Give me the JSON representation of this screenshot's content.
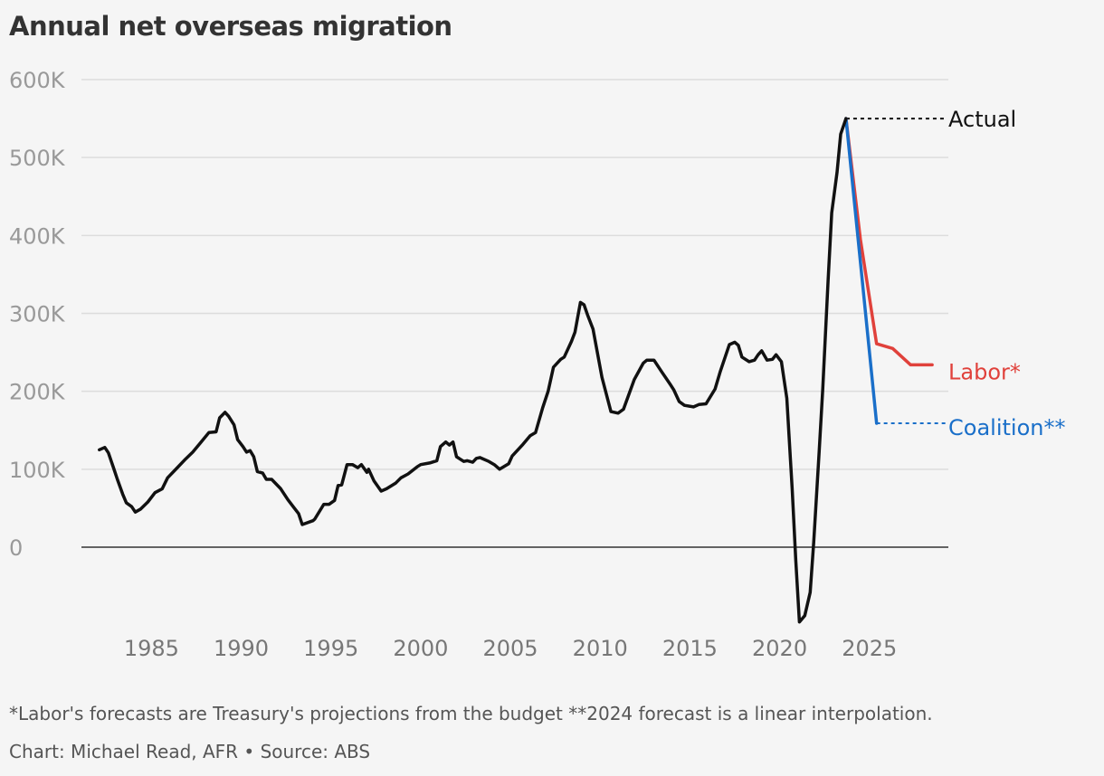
{
  "title": "Annual net overseas migration",
  "footnote": "*Labor's forecasts are Treasury's projections from the budget **2024 forecast is a linear interpolation.",
  "credit": "Chart: Michael Read, AFR • Source: ABS",
  "chart_data": {
    "type": "line",
    "title": "Annual net overseas migration",
    "xlabel": "",
    "ylabel": "",
    "xlim": [
      1981.1,
      2029.4
    ],
    "ylim": [
      -100,
      600
    ],
    "grid": true,
    "yticks": [
      0,
      100,
      200,
      300,
      400,
      500,
      600
    ],
    "ytick_labels": [
      "0",
      "100K",
      "200K",
      "300K",
      "400K",
      "500K",
      "600K"
    ],
    "xticks": [
      1985,
      1990,
      1995,
      2000,
      2005,
      2010,
      2015,
      2020,
      2025
    ],
    "xtick_labels": [
      "1985",
      "1990",
      "1995",
      "2000",
      "2005",
      "2010",
      "2015",
      "2020",
      "2025"
    ],
    "units": "thousands",
    "series": [
      {
        "name": "Actual",
        "color": "#111111",
        "points": [
          [
            1982.1,
            125
          ],
          [
            1982.4,
            128
          ],
          [
            1982.6,
            121
          ],
          [
            1982.9,
            101
          ],
          [
            1983.1,
            87
          ],
          [
            1983.4,
            68
          ],
          [
            1983.6,
            57
          ],
          [
            1983.9,
            52
          ],
          [
            1984.1,
            45
          ],
          [
            1984.4,
            49
          ],
          [
            1984.8,
            58
          ],
          [
            1985.2,
            70
          ],
          [
            1985.6,
            75
          ],
          [
            1985.9,
            89
          ],
          [
            1986.4,
            101
          ],
          [
            1986.9,
            113
          ],
          [
            1987.3,
            122
          ],
          [
            1987.7,
            133
          ],
          [
            1988.2,
            147
          ],
          [
            1988.6,
            148
          ],
          [
            1988.8,
            166
          ],
          [
            1989.1,
            173
          ],
          [
            1989.3,
            168
          ],
          [
            1989.6,
            157
          ],
          [
            1989.8,
            138
          ],
          [
            1990.1,
            129
          ],
          [
            1990.3,
            122
          ],
          [
            1990.5,
            124
          ],
          [
            1990.7,
            116
          ],
          [
            1990.9,
            97
          ],
          [
            1991.2,
            95
          ],
          [
            1991.4,
            87
          ],
          [
            1991.7,
            87
          ],
          [
            1992.2,
            75
          ],
          [
            1992.6,
            61
          ],
          [
            1992.9,
            52
          ],
          [
            1993.2,
            43
          ],
          [
            1993.4,
            29
          ],
          [
            1994.0,
            34
          ],
          [
            1994.1,
            36
          ],
          [
            1994.6,
            55
          ],
          [
            1994.9,
            55
          ],
          [
            1995.2,
            60
          ],
          [
            1995.4,
            79
          ],
          [
            1995.6,
            80
          ],
          [
            1995.9,
            106
          ],
          [
            1996.2,
            106
          ],
          [
            1996.5,
            102
          ],
          [
            1996.7,
            106
          ],
          [
            1997.0,
            96
          ],
          [
            1997.1,
            100
          ],
          [
            1997.4,
            85
          ],
          [
            1997.8,
            72
          ],
          [
            1998.1,
            75
          ],
          [
            1998.6,
            82
          ],
          [
            1998.9,
            89
          ],
          [
            1999.3,
            94
          ],
          [
            1999.8,
            103
          ],
          [
            2000.0,
            106
          ],
          [
            2000.5,
            108
          ],
          [
            2000.9,
            111
          ],
          [
            2001.1,
            129
          ],
          [
            2001.4,
            135
          ],
          [
            2001.6,
            131
          ],
          [
            2001.8,
            135
          ],
          [
            2002.0,
            116
          ],
          [
            2002.4,
            110
          ],
          [
            2002.6,
            111
          ],
          [
            2002.9,
            109
          ],
          [
            2003.1,
            114
          ],
          [
            2003.3,
            115
          ],
          [
            2003.8,
            110
          ],
          [
            2004.1,
            106
          ],
          [
            2004.4,
            100
          ],
          [
            2004.9,
            107
          ],
          [
            2005.1,
            117
          ],
          [
            2005.7,
            132
          ],
          [
            2006.1,
            143
          ],
          [
            2006.4,
            147
          ],
          [
            2006.8,
            179
          ],
          [
            2007.1,
            200
          ],
          [
            2007.4,
            231
          ],
          [
            2007.8,
            241
          ],
          [
            2008.0,
            244
          ],
          [
            2008.4,
            264
          ],
          [
            2008.6,
            276
          ],
          [
            2008.9,
            314
          ],
          [
            2009.1,
            311
          ],
          [
            2009.3,
            298
          ],
          [
            2009.6,
            280
          ],
          [
            2010.1,
            218
          ],
          [
            2010.6,
            174
          ],
          [
            2011.0,
            172
          ],
          [
            2011.3,
            177
          ],
          [
            2011.9,
            215
          ],
          [
            2012.4,
            236
          ],
          [
            2012.6,
            240
          ],
          [
            2013.0,
            240
          ],
          [
            2013.4,
            226
          ],
          [
            2013.9,
            209
          ],
          [
            2014.1,
            202
          ],
          [
            2014.4,
            187
          ],
          [
            2014.7,
            182
          ],
          [
            2015.2,
            180
          ],
          [
            2015.5,
            183
          ],
          [
            2015.9,
            184
          ],
          [
            2016.4,
            203
          ],
          [
            2016.7,
            226
          ],
          [
            2017.2,
            260
          ],
          [
            2017.5,
            263
          ],
          [
            2017.7,
            259
          ],
          [
            2017.9,
            244
          ],
          [
            2018.3,
            238
          ],
          [
            2018.6,
            240
          ],
          [
            2018.8,
            247
          ],
          [
            2019.0,
            252
          ],
          [
            2019.3,
            240
          ],
          [
            2019.6,
            241
          ],
          [
            2019.8,
            247
          ],
          [
            2020.1,
            238
          ],
          [
            2020.4,
            191
          ],
          [
            2020.7,
            75
          ],
          [
            2020.9,
            -17
          ],
          [
            2021.1,
            -96
          ],
          [
            2021.4,
            -88
          ],
          [
            2021.7,
            -58
          ],
          [
            2021.9,
            6
          ],
          [
            2022.2,
            122
          ],
          [
            2022.4,
            203
          ],
          [
            2022.7,
            342
          ],
          [
            2022.9,
            429
          ],
          [
            2023.2,
            481
          ],
          [
            2023.4,
            530
          ],
          [
            2023.7,
            550
          ]
        ]
      },
      {
        "name": "Labor*",
        "color": "#e0413b",
        "points": [
          [
            2023.7,
            550
          ],
          [
            2024.5,
            395
          ],
          [
            2025.4,
            261
          ],
          [
            2026.3,
            255
          ],
          [
            2027.3,
            234
          ],
          [
            2028.5,
            234
          ]
        ]
      },
      {
        "name": "Coalition**",
        "color": "#1a6fc9",
        "points": [
          [
            2023.7,
            550
          ],
          [
            2025.4,
            159
          ]
        ]
      }
    ],
    "reference_lines": [
      {
        "series": "Actual",
        "value": 550,
        "style": "dotted",
        "color": "#111111"
      },
      {
        "series": "Coalition**",
        "value": 159,
        "style": "dotted",
        "color": "#1a6fc9"
      }
    ]
  }
}
